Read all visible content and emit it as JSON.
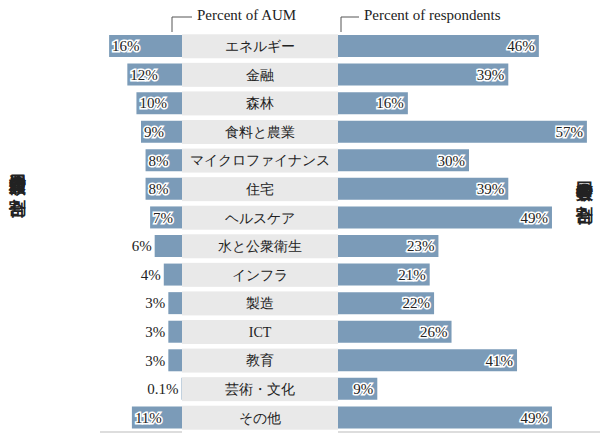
{
  "chart_data": {
    "type": "bar",
    "orientation": "horizontal",
    "data_labels": true,
    "tick_labels": false,
    "grid": false,
    "categories": [
      "エネルギー",
      "金融",
      "森林",
      "食料と農業",
      "マイクロファイナンス",
      "住宅",
      "ヘルスケア",
      "水と公衆衛生",
      "インフラ",
      "製造",
      "ICT",
      "教育",
      "芸術・文化",
      "その他"
    ],
    "series": [
      {
        "name": "Percent of AUM",
        "axis_label": "運用資産額の割合",
        "color": "#7b9bb8",
        "xlim": [
          0,
          18
        ],
        "xticks": [],
        "values": [
          16,
          12,
          10,
          9,
          8,
          8,
          7,
          6,
          4,
          3,
          3,
          3,
          0.1,
          11
        ],
        "value_labels": [
          "16%",
          "12%",
          "10%",
          "9%",
          "8%",
          "8%",
          "7%",
          "6%",
          "4%",
          "3%",
          "3%",
          "3%",
          "0.1%",
          "11%"
        ]
      },
      {
        "name": "Percent of respondents",
        "axis_label": "回答者数の割合",
        "color": "#7b9bb8",
        "xlim": [
          0,
          60
        ],
        "xticks": [],
        "values": [
          46,
          39,
          16,
          57,
          30,
          39,
          49,
          23,
          21,
          22,
          26,
          41,
          9,
          49
        ],
        "value_labels": [
          "46%",
          "39%",
          "16%",
          "57%",
          "30%",
          "39%",
          "49%",
          "23%",
          "21%",
          "22%",
          "26%",
          "41%",
          "9%",
          "49%"
        ]
      }
    ]
  }
}
